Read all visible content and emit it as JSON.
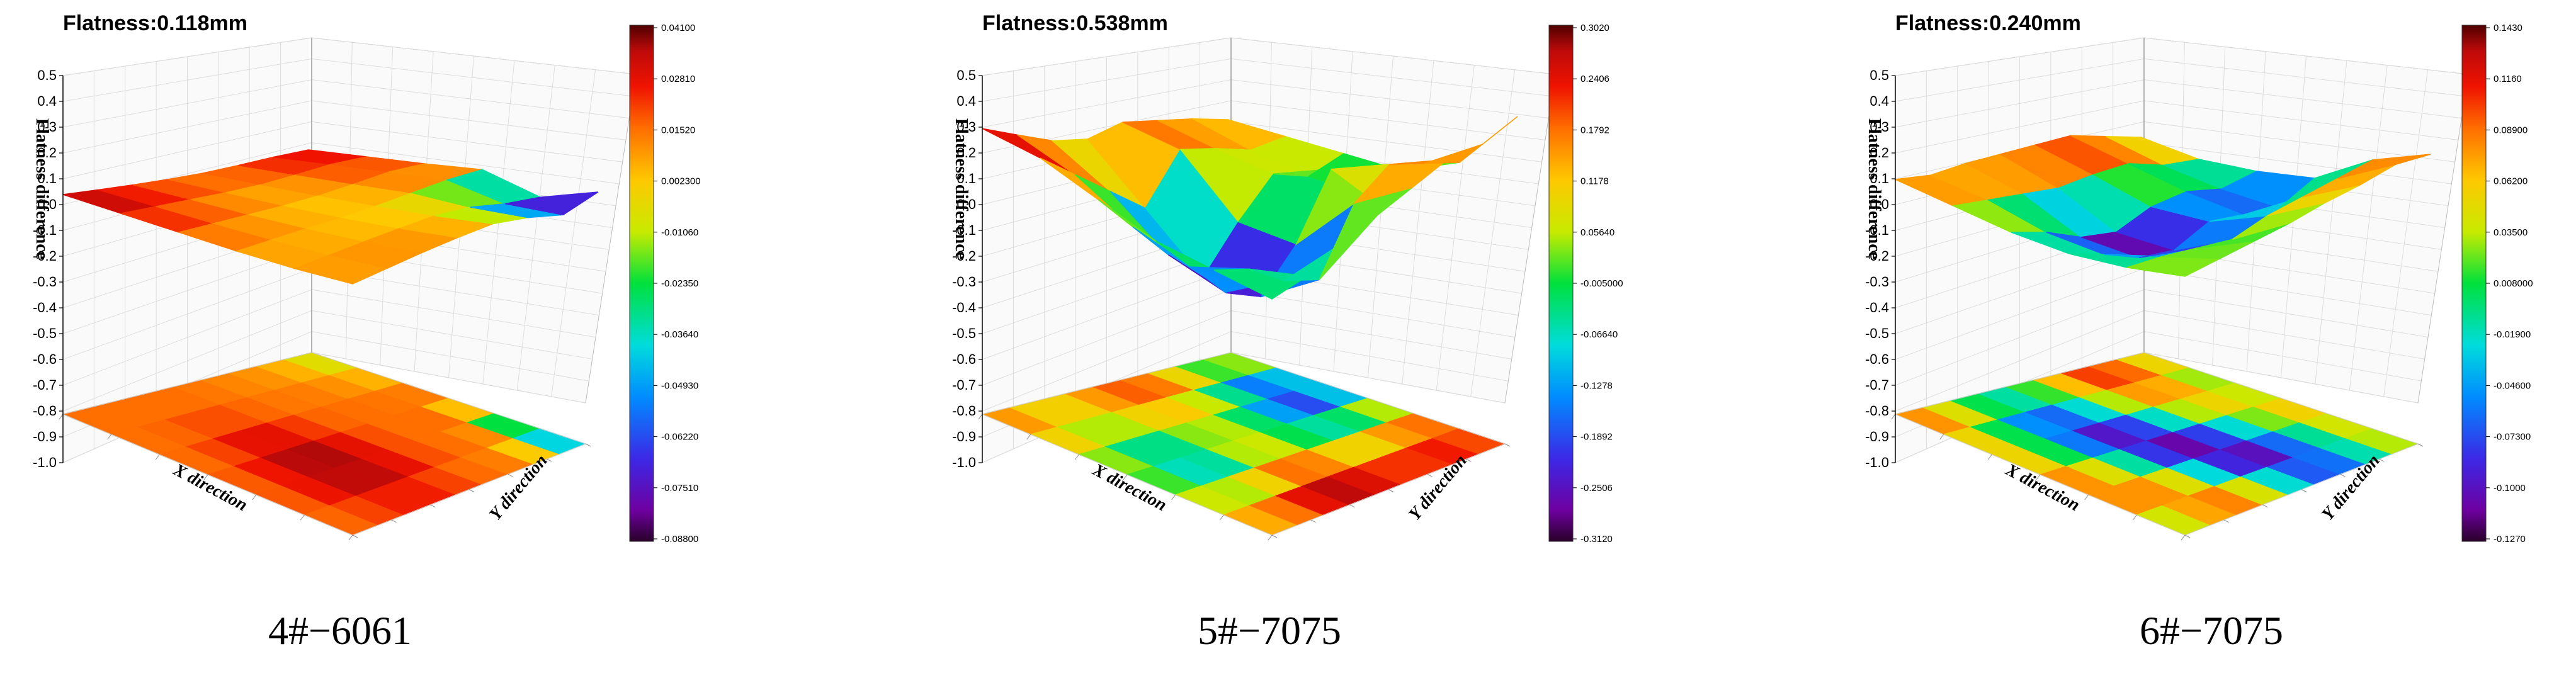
{
  "chart_data": [
    {
      "type": "surface3d",
      "title": "Flatness:0.118mm",
      "caption": "4#−6061",
      "ylabel": "Flatness difference",
      "xlabel": "X direction",
      "zlabel": "Y direction",
      "z_ticks": [
        "0.5",
        "0.4",
        "0.3",
        "0.2",
        "0.1",
        "0.0",
        "-0.1",
        "-0.2",
        "-0.3",
        "-0.4",
        "-0.5",
        "-0.6",
        "-0.7",
        "-0.8",
        "-0.9",
        "-1.0"
      ],
      "colorbar_ticks": [
        "0.04100",
        "0.02810",
        "0.01520",
        "0.002300",
        "-0.01060",
        "-0.02350",
        "-0.03640",
        "-0.04930",
        "-0.06220",
        "-0.07510",
        "-0.08800"
      ],
      "colorbar_range": [
        -0.088,
        0.041
      ],
      "surface_grid": [
        [
          0.04,
          0.032,
          0.025,
          0.02,
          0.018,
          0.022,
          0.028,
          0.03
        ],
        [
          0.03,
          0.024,
          0.018,
          0.012,
          0.01,
          0.016,
          0.024,
          0.02
        ],
        [
          0.02,
          0.015,
          0.01,
          0.005,
          0.004,
          0.01,
          0.018,
          0.01
        ],
        [
          0.01,
          0.008,
          0.006,
          0.002,
          0.002,
          0.006,
          0.01,
          0.004
        ],
        [
          0.006,
          0.006,
          0.006,
          0.004,
          0.0,
          -0.02,
          -0.06,
          -0.088
        ],
        [
          0.01,
          0.012,
          0.014,
          0.012,
          0.006,
          -0.03,
          -0.08,
          -0.05
        ]
      ],
      "floor_grid": [
        [
          0.015,
          0.015,
          0.015,
          0.015,
          0.015,
          0.012,
          0.01,
          0.008,
          0.0,
          -0.02
        ],
        [
          0.015,
          0.015,
          0.015,
          0.015,
          0.015,
          0.014,
          0.012,
          0.01,
          0.004,
          -0.004
        ],
        [
          0.015,
          0.015,
          0.02,
          0.025,
          0.02,
          0.015,
          0.015,
          0.015,
          0.012,
          0.01
        ],
        [
          0.015,
          0.018,
          0.028,
          0.035,
          0.03,
          0.02,
          0.015,
          0.015,
          0.015,
          0.015
        ],
        [
          0.015,
          0.022,
          0.035,
          0.041,
          0.035,
          0.025,
          0.015,
          0.015,
          0.015,
          -0.03
        ],
        [
          0.015,
          0.02,
          0.028,
          0.032,
          0.028,
          0.02,
          0.015,
          0.015,
          0.0,
          -0.08
        ],
        [
          0.015,
          0.015,
          0.018,
          0.02,
          0.018,
          0.015,
          0.012,
          0.01,
          -0.02,
          -0.06
        ]
      ]
    },
    {
      "type": "surface3d",
      "title": "Flatness:0.538mm",
      "caption": "5#−7075",
      "ylabel": "Flatness difference",
      "xlabel": "X direction",
      "zlabel": "Y direction",
      "z_ticks": [
        "0.5",
        "0.4",
        "0.3",
        "0.2",
        "0.1",
        "0.0",
        "-0.1",
        "-0.2",
        "-0.3",
        "-0.4",
        "-0.5",
        "-0.6",
        "-0.7",
        "-0.8",
        "-0.9",
        "-1.0"
      ],
      "colorbar_ticks": [
        "0.3020",
        "0.2406",
        "0.1792",
        "0.1178",
        "0.05640",
        "-0.005000",
        "-0.06640",
        "-0.1278",
        "-0.1892",
        "-0.2506",
        "-0.3120"
      ],
      "colorbar_range": [
        -0.312,
        0.302
      ],
      "surface_grid": [
        [
          0.302,
          0.25,
          0.2,
          0.18,
          0.22,
          0.2,
          0.18,
          0.15
        ],
        [
          0.25,
          0.15,
          0.05,
          -0.05,
          0.15,
          0.12,
          0.08,
          0.1
        ],
        [
          0.15,
          0.0,
          -0.15,
          -0.28,
          -0.1,
          0.05,
          0.0,
          0.05
        ],
        [
          0.05,
          -0.1,
          -0.25,
          -0.312,
          -0.15,
          0.1,
          -0.05,
          0.0
        ],
        [
          0.0,
          -0.05,
          -0.15,
          -0.2,
          0.05,
          0.15,
          0.1,
          0.05
        ],
        [
          -0.05,
          -0.02,
          0.05,
          0.1,
          0.15,
          0.2,
          0.2,
          0.25
        ]
      ],
      "floor_grid": [
        [
          0.2,
          0.15,
          0.12,
          0.15,
          0.2,
          0.25,
          0.2,
          0.1,
          0.05,
          0.15
        ],
        [
          0.15,
          0.1,
          0.05,
          0.1,
          0.15,
          0.15,
          0.08,
          0.0,
          -0.1,
          0.05
        ],
        [
          0.1,
          0.05,
          0.0,
          0.05,
          0.1,
          0.05,
          -0.05,
          -0.2,
          -0.3,
          -0.05
        ],
        [
          0.05,
          -0.05,
          -0.15,
          -0.05,
          0.05,
          0.0,
          -0.1,
          -0.15,
          -0.1,
          0.05
        ],
        [
          0.05,
          0.0,
          -0.05,
          0.05,
          0.15,
          0.05,
          0.0,
          0.05,
          0.1,
          0.15
        ],
        [
          0.1,
          0.1,
          0.15,
          0.25,
          0.25,
          0.2,
          0.15,
          0.2,
          0.25,
          0.2
        ],
        [
          0.15,
          0.2,
          0.25,
          0.3,
          0.28,
          0.25,
          0.25,
          0.25,
          0.2,
          0.15
        ]
      ]
    },
    {
      "type": "surface3d",
      "title": "Flatness:0.240mm",
      "caption": "6#−7075",
      "ylabel": "Flatness difference",
      "xlabel": "X direction",
      "zlabel": "Y direction",
      "z_ticks": [
        "0.5",
        "0.4",
        "0.3",
        "0.2",
        "0.1",
        "0.0",
        "-0.1",
        "-0.2",
        "-0.3",
        "-0.4",
        "-0.5",
        "-0.6",
        "-0.7",
        "-0.8",
        "-0.9",
        "-1.0"
      ],
      "colorbar_ticks": [
        "0.1430",
        "0.1160",
        "0.08900",
        "0.06200",
        "0.03500",
        "0.008000",
        "-0.01900",
        "-0.04600",
        "-0.07300",
        "-0.1000",
        "-0.1270"
      ],
      "colorbar_range": [
        -0.127,
        0.143
      ],
      "surface_grid": [
        [
          0.1,
          0.09,
          0.11,
          0.12,
          0.13,
          0.14,
          0.11,
          0.08
        ],
        [
          0.06,
          0.05,
          0.04,
          0.03,
          0.05,
          0.06,
          0.02,
          0.01
        ],
        [
          0.02,
          -0.02,
          -0.08,
          -0.1,
          -0.04,
          -0.02,
          -0.05,
          -0.02
        ],
        [
          0.0,
          -0.05,
          -0.11,
          -0.127,
          -0.06,
          -0.08,
          -0.1,
          -0.03
        ],
        [
          0.01,
          0.0,
          -0.02,
          -0.04,
          0.0,
          0.02,
          0.04,
          0.06
        ],
        [
          0.04,
          0.05,
          0.06,
          0.07,
          0.09,
          0.1,
          0.12,
          0.1
        ]
      ],
      "floor_grid": [
        [
          0.1,
          0.08,
          0.05,
          0.02,
          0.0,
          0.05,
          0.1,
          0.12,
          0.08,
          0.05
        ],
        [
          0.08,
          0.05,
          0.0,
          -0.05,
          -0.02,
          0.03,
          0.08,
          0.1,
          0.06,
          0.02
        ],
        [
          0.06,
          0.02,
          -0.05,
          -0.1,
          -0.08,
          -0.02,
          0.04,
          0.08,
          0.04,
          0.0
        ],
        [
          0.08,
          0.05,
          0.0,
          -0.08,
          -0.12,
          -0.08,
          -0.02,
          0.03,
          0.06,
          0.05
        ],
        [
          0.1,
          0.08,
          0.05,
          -0.02,
          -0.1,
          -0.127,
          -0.08,
          -0.02,
          0.03,
          0.08
        ],
        [
          0.05,
          0.08,
          0.1,
          0.05,
          -0.03,
          -0.09,
          -0.1,
          -0.05,
          0.0,
          0.05
        ],
        [
          0.0,
          0.03,
          0.08,
          0.1,
          0.05,
          -0.02,
          -0.06,
          -0.03,
          0.02,
          0.06
        ]
      ]
    }
  ]
}
